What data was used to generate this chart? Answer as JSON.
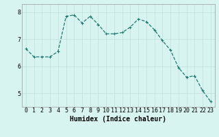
{
  "x": [
    0,
    1,
    2,
    3,
    4,
    5,
    6,
    7,
    8,
    9,
    10,
    11,
    12,
    13,
    14,
    15,
    16,
    17,
    18,
    19,
    20,
    21,
    22,
    23
  ],
  "y": [
    6.65,
    6.35,
    6.35,
    6.35,
    6.55,
    7.85,
    7.9,
    7.6,
    7.85,
    7.55,
    7.2,
    7.2,
    7.25,
    7.45,
    7.75,
    7.65,
    7.35,
    6.95,
    6.6,
    5.95,
    5.6,
    5.65,
    5.1,
    4.7
  ],
  "line_color": "#1a7a6e",
  "marker": "+",
  "marker_size": 3,
  "bg_color": "#d8f4f0",
  "grid_color": "#c0deda",
  "xlabel": "Humidex (Indice chaleur)",
  "xlim": [
    -0.5,
    23.5
  ],
  "ylim": [
    4.5,
    8.3
  ],
  "yticks": [
    5,
    6,
    7,
    8
  ],
  "font_size": 6,
  "xlabel_fontsize": 7,
  "linewidth": 0.9
}
